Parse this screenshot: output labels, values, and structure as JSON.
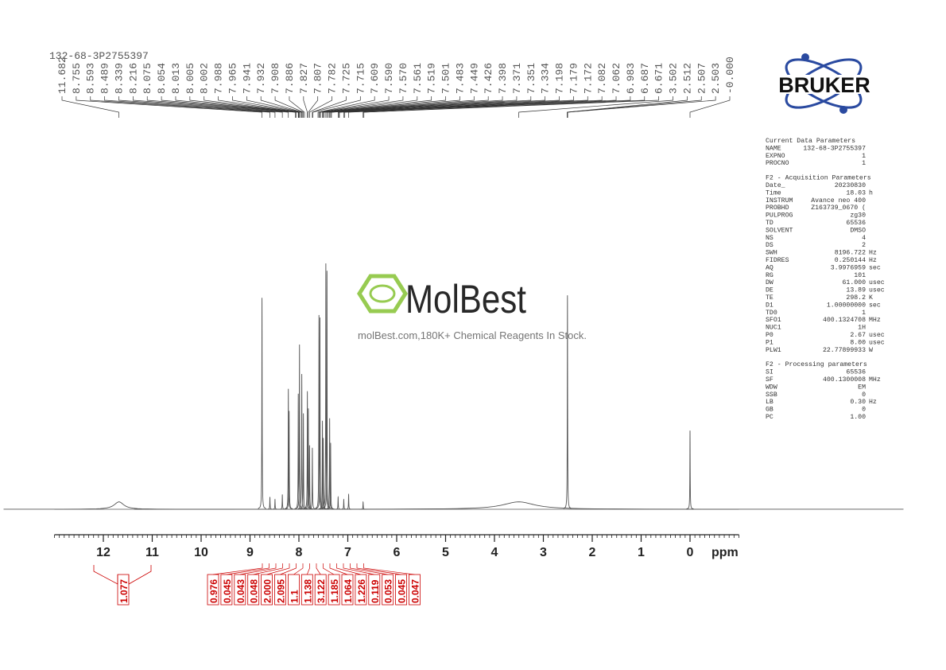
{
  "chart_data": {
    "type": "spectrum",
    "title": "132-68-3P2755397",
    "x_label": "ppm",
    "xlim": [
      13,
      -1
    ],
    "xticks": [
      12,
      11,
      10,
      9,
      8,
      7,
      6,
      5,
      4,
      3,
      2,
      1,
      0
    ],
    "minor_tick_step": 0.1,
    "ylim": [
      0,
      100
    ],
    "color": "#555555",
    "peaks": [
      {
        "ppm": 11.68,
        "height": 3,
        "width": 0.12
      },
      {
        "ppm": 8.755,
        "height": 86,
        "width": 0.004
      },
      {
        "ppm": 8.593,
        "height": 5,
        "width": 0.004
      },
      {
        "ppm": 8.489,
        "height": 4,
        "width": 0.004
      },
      {
        "ppm": 8.339,
        "height": 6,
        "width": 0.004
      },
      {
        "ppm": 8.216,
        "height": 49,
        "width": 0.004
      },
      {
        "ppm": 8.2,
        "height": 40,
        "width": 0.004
      },
      {
        "ppm": 8.013,
        "height": 47,
        "width": 0.004
      },
      {
        "ppm": 7.988,
        "height": 67,
        "width": 0.004
      },
      {
        "ppm": 7.941,
        "height": 55,
        "width": 0.004
      },
      {
        "ppm": 7.908,
        "height": 39,
        "width": 0.004
      },
      {
        "ppm": 7.827,
        "height": 48,
        "width": 0.004
      },
      {
        "ppm": 7.807,
        "height": 41,
        "width": 0.004
      },
      {
        "ppm": 7.782,
        "height": 26,
        "width": 0.004
      },
      {
        "ppm": 7.725,
        "height": 25,
        "width": 0.004
      },
      {
        "ppm": 7.59,
        "height": 79,
        "width": 0.004
      },
      {
        "ppm": 7.57,
        "height": 78,
        "width": 0.004
      },
      {
        "ppm": 7.519,
        "height": 36,
        "width": 0.004
      },
      {
        "ppm": 7.501,
        "height": 29,
        "width": 0.004
      },
      {
        "ppm": 7.449,
        "height": 100,
        "width": 0.004
      },
      {
        "ppm": 7.426,
        "height": 97,
        "width": 0.004
      },
      {
        "ppm": 7.371,
        "height": 37,
        "width": 0.004
      },
      {
        "ppm": 7.351,
        "height": 27,
        "width": 0.004
      },
      {
        "ppm": 7.198,
        "height": 5,
        "width": 0.004
      },
      {
        "ppm": 7.082,
        "height": 4,
        "width": 0.004
      },
      {
        "ppm": 6.983,
        "height": 6,
        "width": 0.004
      },
      {
        "ppm": 6.687,
        "height": 3,
        "width": 0.004
      },
      {
        "ppm": 3.502,
        "height": 3,
        "width": 0.4
      },
      {
        "ppm": 2.507,
        "height": 87,
        "width": 0.004
      },
      {
        "ppm": 0.0,
        "height": 32,
        "width": 0.004
      }
    ],
    "peak_labels": [
      11.682,
      8.755,
      8.593,
      8.489,
      8.339,
      8.216,
      8.075,
      8.054,
      8.013,
      8.005,
      8.002,
      7.988,
      7.965,
      7.941,
      7.932,
      7.908,
      7.886,
      7.827,
      7.807,
      7.782,
      7.725,
      7.715,
      7.609,
      {
        "value": 7.59,
        "label": "7.590"
      },
      {
        "value": 7.57,
        "label": "7.570"
      },
      7.561,
      7.519,
      7.501,
      7.483,
      7.449,
      7.426,
      7.398,
      7.371,
      7.351,
      7.334,
      7.198,
      7.179,
      7.172,
      7.082,
      7.062,
      6.983,
      6.687,
      6.671,
      3.502,
      2.512,
      2.507,
      2.503,
      {
        "value": 0,
        "label": "-0.000"
      }
    ],
    "integrals": [
      1.077,
      0.976,
      0.045,
      0.043,
      0.048,
      {
        "value": 2,
        "label": "2.000"
      },
      2.095,
      1.1,
      1.138,
      3.122,
      1.185,
      1.064,
      1.226,
      0.119,
      0.053,
      0.045,
      0.047
    ]
  },
  "logo": "BRUKER",
  "watermark": {
    "brand": "MolBest",
    "text": "molBest.com,180K+ Chemical Reagents In Stock."
  },
  "parameters": {
    "sections": [
      {
        "title": "Current Data Parameters",
        "rows": [
          {
            "key": "NAME",
            "value": "132-68-3P2755397"
          },
          {
            "key": "EXPNO",
            "value": "1"
          },
          {
            "key": "PROCNO",
            "value": "1"
          }
        ]
      },
      {
        "title": "F2 - Acquisition Parameters",
        "rows": [
          {
            "key": "Date_",
            "value": "20230830"
          },
          {
            "key": "Time",
            "value": "18.03",
            "unit": "h"
          },
          {
            "key": "INSTRUM",
            "value": "Avance neo 400"
          },
          {
            "key": "PROBHD",
            "value": "Z163739_0670 ("
          },
          {
            "key": "PULPROG",
            "value": "zg30"
          },
          {
            "key": "TD",
            "value": "65536"
          },
          {
            "key": "SOLVENT",
            "value": "DMSO"
          },
          {
            "key": "NS",
            "value": "4"
          },
          {
            "key": "DS",
            "value": "2"
          },
          {
            "key": "SWH",
            "value": "8196.722",
            "unit": "Hz"
          },
          {
            "key": "FIDRES",
            "value": "0.250144",
            "unit": "Hz"
          },
          {
            "key": "AQ",
            "value": "3.9976959",
            "unit": "sec"
          },
          {
            "key": "RG",
            "value": "101"
          },
          {
            "key": "DW",
            "value": "61.000",
            "unit": "usec"
          },
          {
            "key": "DE",
            "value": "13.89",
            "unit": "usec"
          },
          {
            "key": "TE",
            "value": "298.2",
            "unit": "K"
          },
          {
            "key": "D1",
            "value": "1.00000000",
            "unit": "sec"
          },
          {
            "key": "TD0",
            "value": "1"
          },
          {
            "key": "SFO1",
            "value": "400.1324708",
            "unit": "MHz"
          },
          {
            "key": "NUC1",
            "value": "1H"
          },
          {
            "key": "P0",
            "value": "2.67",
            "unit": "usec"
          },
          {
            "key": "P1",
            "value": "8.00",
            "unit": "usec"
          },
          {
            "key": "PLW1",
            "value": "22.77899933",
            "unit": "W"
          }
        ]
      },
      {
        "title": "F2 - Processing parameters",
        "rows": [
          {
            "key": "SI",
            "value": "65536"
          },
          {
            "key": "SF",
            "value": "400.1300008",
            "unit": "MHz"
          },
          {
            "key": "WDW",
            "value": "EM"
          },
          {
            "key": "SSB",
            "value": "0"
          },
          {
            "key": "LB",
            "value": "0.30",
            "unit": "Hz"
          },
          {
            "key": "GB",
            "value": "0"
          },
          {
            "key": "PC",
            "value": "1.00"
          }
        ]
      }
    ]
  }
}
